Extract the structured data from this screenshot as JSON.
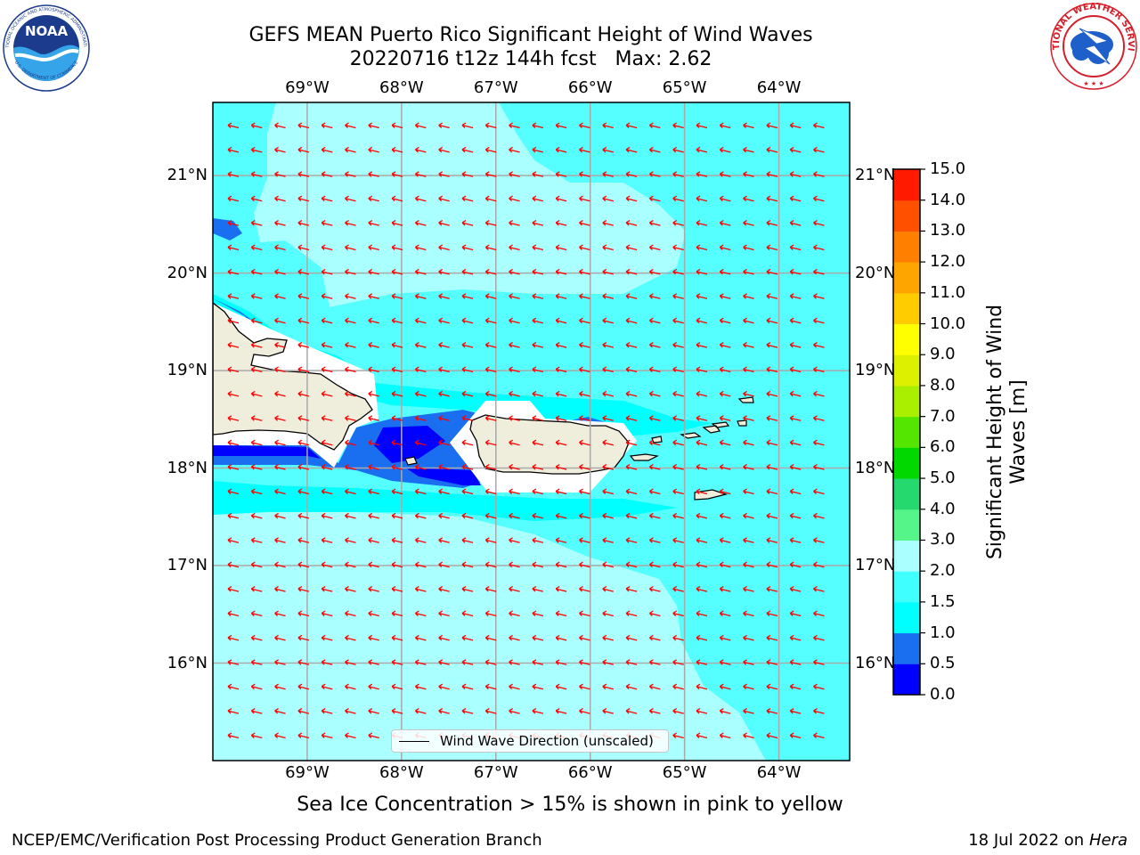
{
  "title": {
    "line1": "GEFS MEAN Puerto Rico Significant Height of Wind Waves",
    "line2": "20220716 t12z 144h fcst   Max: 2.62"
  },
  "logos": {
    "left": {
      "text": "NOAA",
      "ring_top": "NATIONAL OCEANIC AND ATMOSPHERIC ADMINISTRATION",
      "ring_bottom": "U.S. DEPARTMENT OF COMMERCE"
    },
    "right": {
      "ring_text": "NATIONAL WEATHER SERVICE"
    }
  },
  "map": {
    "lon_ticks": [
      "69°W",
      "68°W",
      "67°W",
      "66°W",
      "65°W",
      "64°W"
    ],
    "lat_ticks": [
      "21°N",
      "20°N",
      "19°N",
      "18°N",
      "17°N",
      "16°N"
    ],
    "lon_values": [
      -69,
      -68,
      -67,
      -66,
      -65,
      -64
    ],
    "lat_values": [
      21,
      20,
      19,
      18,
      17,
      16
    ],
    "extent": {
      "lon_min": -70.0,
      "lon_max": -63.25,
      "lat_min": 15.0,
      "lat_max": 21.75
    },
    "max_value": 2.62
  },
  "legend": {
    "label": "Wind Wave Direction (unscaled)"
  },
  "colorbar": {
    "label_line1": "Significant Height of Wind",
    "label_line2": "Waves [m]",
    "ticks": [
      "0.0",
      "0.5",
      "1.0",
      "1.5",
      "2.0",
      "3.0",
      "4.0",
      "5.0",
      "6.0",
      "7.0",
      "8.0",
      "9.0",
      "10.0",
      "11.0",
      "12.0",
      "13.0",
      "14.0",
      "15.0"
    ],
    "colors": [
      "#0000ff",
      "#1a6ff0",
      "#00ffff",
      "#40ffff",
      "#aaffff",
      "#55f58a",
      "#25d96f",
      "#00d800",
      "#55e600",
      "#aaee00",
      "#ddf000",
      "#ffff00",
      "#ffcc00",
      "#ffa500",
      "#ff7f00",
      "#ff5000",
      "#ff1a00"
    ]
  },
  "subtitle": "Sea Ice Concentration > 15% is shown in pink to yellow",
  "footer": {
    "left": "NCEP/EMC/Verification Post Processing Product Generation Branch",
    "right_prefix": "18 Jul 2022 on ",
    "right_host": "Hera"
  }
}
